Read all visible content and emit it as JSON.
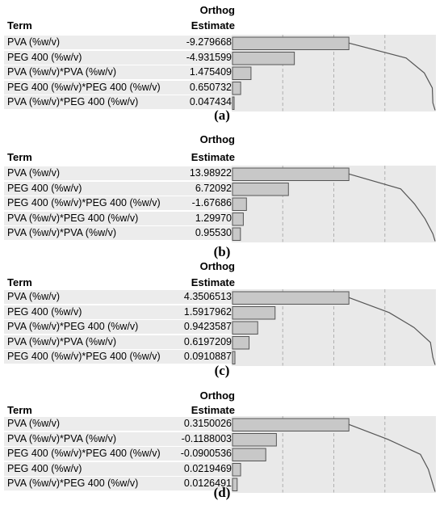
{
  "chart_data": [
    {
      "type": "bar",
      "caption": "(a)",
      "header": {
        "term": "Term",
        "col1": "Orthog",
        "col2": "Estimate"
      },
      "categories": [
        "PVA (%w/v)",
        "PEG 400 (%w/v)",
        "PVA (%w/v)*PVA (%w/v)",
        "PEG 400 (%w/v)*PEG 400 (%w/v)",
        "PVA (%w/v)*PEG 400 (%w/v)"
      ],
      "labels": [
        "-9.279668",
        "-4.931599",
        "1.475409",
        "0.650732",
        "0.047434"
      ],
      "values": [
        -9.279668,
        -4.931599,
        1.475409,
        0.650732,
        0.047434
      ]
    },
    {
      "type": "bar",
      "caption": "(b)",
      "header": {
        "term": "Term",
        "col1": "Orthog",
        "col2": "Estimate"
      },
      "categories": [
        "PVA (%w/v)",
        "PEG 400 (%w/v)",
        "PEG 400 (%w/v)*PEG 400 (%w/v)",
        "PVA (%w/v)*PEG 400 (%w/v)",
        "PVA (%w/v)*PVA (%w/v)"
      ],
      "labels": [
        "13.98922",
        "6.72092",
        "-1.67686",
        "1.29970",
        "0.95530"
      ],
      "values": [
        13.98922,
        6.72092,
        -1.67686,
        1.2997,
        0.9553
      ]
    },
    {
      "type": "bar",
      "caption": "(c)",
      "header": {
        "term": "Term",
        "col1": "Orthog",
        "col2": "Estimate"
      },
      "categories": [
        "PVA (%w/v)",
        "PEG 400 (%w/v)",
        "PVA (%w/v)*PEG 400 (%w/v)",
        "PVA (%w/v)*PVA (%w/v)",
        "PEG 400 (%w/v)*PEG 400 (%w/v)"
      ],
      "labels": [
        "4.3506513",
        "1.5917962",
        "0.9423587",
        "0.6197209",
        "0.0910887"
      ],
      "values": [
        4.3506513,
        1.5917962,
        0.9423587,
        0.6197209,
        0.0910887
      ]
    },
    {
      "type": "bar",
      "caption": "(d)",
      "header": {
        "term": "Term",
        "col1": "Orthog",
        "col2": "Estimate"
      },
      "categories": [
        "PVA (%w/v)",
        "PVA (%w/v)*PVA (%w/v)",
        "PEG 400 (%w/v)*PEG 400 (%w/v)",
        "PEG 400 (%w/v)",
        "PVA (%w/v)*PEG 400 (%w/v)"
      ],
      "labels": [
        "0.3150026",
        "-0.1188003",
        "-0.0900536",
        "0.0219469",
        "0.0126491"
      ],
      "values": [
        0.3150026,
        -0.1188003,
        -0.0900536,
        0.0219469,
        0.0126491
      ]
    }
  ],
  "colors": {
    "bar_fill": "#c8c8c8",
    "bar_stroke": "#555555",
    "curve": "#555555",
    "grid": "#b0b0b0",
    "plot_bg": "#e9e9e9",
    "row_bg": "#ececec"
  }
}
